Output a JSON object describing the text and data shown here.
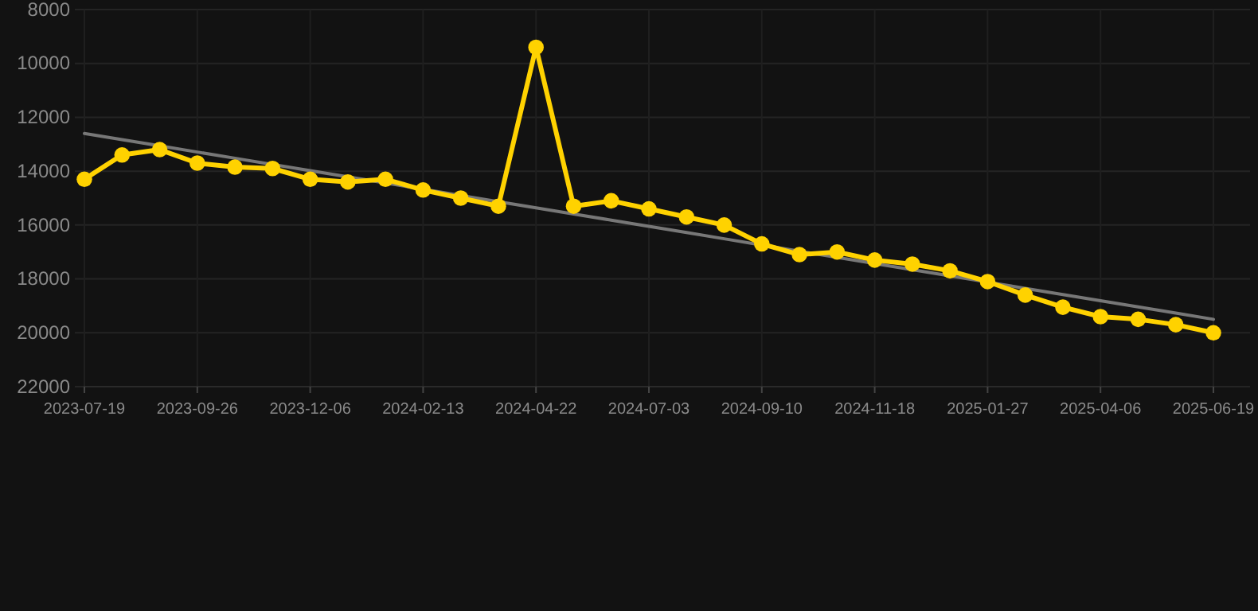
{
  "chart_data": {
    "type": "line",
    "categories": [
      "2023-07-19",
      null,
      null,
      "2023-09-26",
      null,
      null,
      "2023-12-06",
      null,
      null,
      "2024-02-13",
      null,
      null,
      "2024-04-22",
      null,
      null,
      "2024-07-03",
      null,
      null,
      "2024-09-10",
      null,
      null,
      "2024-11-18",
      null,
      null,
      "2025-01-27",
      null,
      null,
      "2025-04-06",
      null,
      null,
      "2025-06-19"
    ],
    "series": [
      {
        "color": "#ffd200",
        "marker": "circle",
        "values": [
          14300,
          13400,
          13200,
          13700,
          13850,
          13900,
          14300,
          14400,
          14300,
          14700,
          15000,
          15300,
          9400,
          15300,
          15100,
          15400,
          15700,
          16000,
          16700,
          17100,
          17000,
          17300,
          17450,
          17700,
          18100,
          18600,
          19050,
          19400,
          19500,
          19700,
          20000
        ]
      },
      {
        "color": "#777777",
        "marker": "none",
        "values": [
          12600,
          12830,
          13060,
          13290,
          13520,
          13750,
          13980,
          14210,
          14440,
          14670,
          14900,
          15130,
          15360,
          15590,
          15820,
          16050,
          16280,
          16510,
          16740,
          16970,
          17200,
          17430,
          17660,
          17890,
          18120,
          18350,
          18580,
          18810,
          19040,
          19270,
          19500
        ]
      }
    ],
    "ylim": [
      22000,
      8000
    ],
    "yticks": [
      8000,
      10000,
      12000,
      14000,
      16000,
      18000,
      20000,
      22000
    ],
    "grid": true
  }
}
